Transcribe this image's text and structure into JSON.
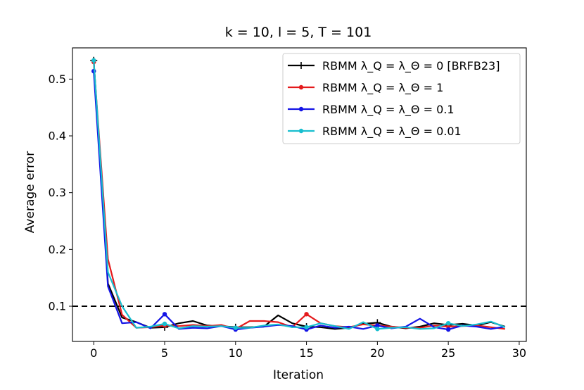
{
  "chart_data": {
    "type": "line",
    "title": "k =  10, l =  5, T = 101",
    "xlabel": "Iteration",
    "ylabel": "Average error",
    "xlim": [
      -1.5,
      30.5
    ],
    "ylim": [
      0.038,
      0.555
    ],
    "xticks": [
      0,
      5,
      10,
      15,
      20,
      25,
      30
    ],
    "yticks": [
      0.1,
      0.2,
      0.3,
      0.4,
      0.5
    ],
    "grid": false,
    "legend_position": "upper right",
    "reference_line": {
      "y": 0.1,
      "style": "dashed",
      "color": "#000000"
    },
    "x": [
      0,
      1,
      2,
      3,
      4,
      5,
      6,
      7,
      8,
      9,
      10,
      11,
      12,
      13,
      14,
      15,
      16,
      17,
      18,
      19,
      20,
      21,
      22,
      23,
      24,
      25,
      26,
      27,
      28,
      29
    ],
    "series": [
      {
        "name": "RBMM λ_Q = λ_Θ = 0 [BRFB23]",
        "color": "#000000",
        "marker": "plus",
        "values": [
          0.533,
          0.14,
          0.08,
          0.072,
          0.062,
          0.063,
          0.07,
          0.074,
          0.066,
          0.065,
          0.063,
          0.063,
          0.064,
          0.084,
          0.07,
          0.064,
          0.063,
          0.06,
          0.062,
          0.069,
          0.071,
          0.064,
          0.061,
          0.064,
          0.07,
          0.067,
          0.069,
          0.066,
          0.072,
          0.064
        ]
      },
      {
        "name": "RBMM λ_Q = λ_Θ = 1",
        "color": "#e41a1c",
        "marker": "dot",
        "values": [
          0.53,
          0.183,
          0.085,
          0.062,
          0.063,
          0.066,
          0.065,
          0.067,
          0.065,
          0.067,
          0.06,
          0.074,
          0.074,
          0.072,
          0.063,
          0.086,
          0.07,
          0.065,
          0.063,
          0.068,
          0.066,
          0.064,
          0.062,
          0.062,
          0.066,
          0.064,
          0.065,
          0.066,
          0.063,
          0.06
        ]
      },
      {
        "name": "RBMM λ_Q = λ_Θ = 0.1",
        "color": "#1414e6",
        "marker": "dot",
        "values": [
          0.514,
          0.135,
          0.07,
          0.072,
          0.061,
          0.086,
          0.06,
          0.062,
          0.061,
          0.065,
          0.059,
          0.062,
          0.064,
          0.067,
          0.065,
          0.059,
          0.066,
          0.062,
          0.064,
          0.06,
          0.066,
          0.061,
          0.064,
          0.078,
          0.063,
          0.059,
          0.066,
          0.064,
          0.06,
          0.064
        ]
      },
      {
        "name": "RBMM λ_Q = λ_Θ = 0.01",
        "color": "#17becf",
        "marker": "dot",
        "values": [
          0.533,
          0.16,
          0.1,
          0.062,
          0.064,
          0.069,
          0.061,
          0.065,
          0.064,
          0.065,
          0.062,
          0.062,
          0.066,
          0.068,
          0.063,
          0.063,
          0.07,
          0.065,
          0.06,
          0.072,
          0.06,
          0.062,
          0.063,
          0.06,
          0.061,
          0.07,
          0.065,
          0.068,
          0.073,
          0.063
        ]
      }
    ]
  }
}
